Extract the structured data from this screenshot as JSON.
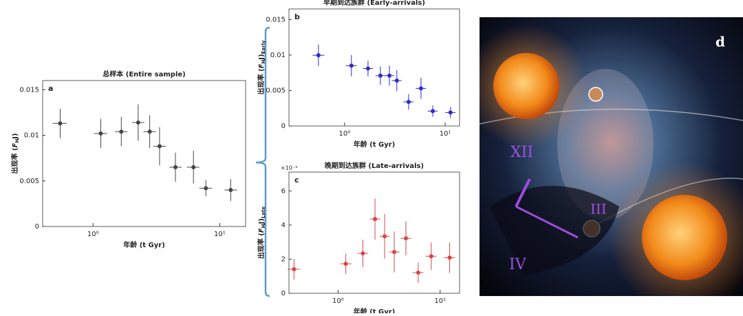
{
  "chart_data": [
    {
      "type": "scatter",
      "panel": "a",
      "title": "总样本 (Entire sample)",
      "x_label": "年龄 (t Gyr)",
      "y_label": {
        "prefix": "出现率 (",
        "var": "F",
        "sub": "H",
        "suffix": "J)"
      },
      "color": "#444444",
      "log_x": true,
      "xlim": [
        0.4,
        16
      ],
      "xticks": [
        {
          "value": 1,
          "label": "10⁰"
        },
        {
          "value": 10,
          "label": "10¹"
        }
      ],
      "ylim": [
        0,
        0.016
      ],
      "yticks": [
        0,
        0.005,
        0.01,
        0.015
      ],
      "x": [
        0.55,
        1.15,
        1.67,
        2.27,
        2.8,
        3.35,
        4.47,
        6.2,
        7.77,
        12.2
      ],
      "x_low": [
        0.48,
        1.02,
        1.49,
        2.03,
        2.5,
        3.0,
        4.0,
        5.5,
        6.9,
        10.9
      ],
      "x_high": [
        0.62,
        1.29,
        1.87,
        2.54,
        3.14,
        3.75,
        5.0,
        6.9,
        8.7,
        13.7
      ],
      "values": [
        0.0113,
        0.0102,
        0.0104,
        0.0114,
        0.0104,
        0.0088,
        0.0065,
        0.0065,
        0.0042,
        0.004
      ],
      "yerr": [
        0.0016,
        0.0016,
        0.0016,
        0.002,
        0.0018,
        0.0021,
        0.0016,
        0.0018,
        0.0009,
        0.0012
      ]
    },
    {
      "type": "scatter",
      "panel": "b",
      "title": "早期到达族群 (Early-arrivals)",
      "x_label": "年龄 (t Gyr)",
      "y_label": {
        "prefix": "出现率 (",
        "var": "F",
        "sub": "H",
        "suffix": "J)",
        "sub2": "Early"
      },
      "color": "#2b2bcc",
      "log_x": true,
      "xlim": [
        0.28,
        13.9
      ],
      "xticks": [
        {
          "value": 1,
          "label": "10⁰"
        },
        {
          "value": 10,
          "label": "10¹"
        }
      ],
      "ylim": [
        0,
        0.0165
      ],
      "yticks": [
        0,
        0.005,
        0.01,
        0.015
      ],
      "x": [
        0.55,
        1.17,
        1.71,
        2.27,
        2.79,
        3.31,
        4.33,
        5.75,
        7.53,
        11.3
      ],
      "x_low": [
        0.48,
        1.03,
        1.52,
        2.03,
        2.5,
        2.95,
        3.85,
        5.1,
        6.7,
        10.0
      ],
      "x_high": [
        0.63,
        1.32,
        1.92,
        2.54,
        3.12,
        3.7,
        4.85,
        6.45,
        8.45,
        12.7
      ],
      "values": [
        0.00997,
        0.0085,
        0.0081,
        0.0071,
        0.0071,
        0.0064,
        0.0034,
        0.0053,
        0.0021,
        0.0019
      ],
      "yerr": [
        0.0015,
        0.0015,
        0.0011,
        0.0013,
        0.0014,
        0.0015,
        0.0011,
        0.0015,
        0.0008,
        0.0008
      ]
    },
    {
      "type": "scatter",
      "panel": "c",
      "title": "晚期到达族群 (Late-arrivals)",
      "x_label": "年龄 (t Gyr)",
      "y_label": {
        "prefix": "出现率 (",
        "var": "F",
        "sub": "H",
        "suffix": "J)",
        "sub2": "Late"
      },
      "y_multiplier": "×10⁻³",
      "color": "#d94444",
      "log_x": true,
      "xlim": [
        0.33,
        15.5
      ],
      "xticks": [
        {
          "value": 1,
          "label": "10⁰"
        },
        {
          "value": 10,
          "label": "10¹"
        }
      ],
      "ylim": [
        0,
        7.1
      ],
      "yticks": [
        0,
        2,
        4,
        6
      ],
      "x": [
        0.37,
        1.19,
        1.75,
        2.3,
        2.86,
        3.55,
        4.62,
        6.1,
        8.18,
        12.4
      ],
      "x_low": [
        0.32,
        1.05,
        1.55,
        2.05,
        2.55,
        3.15,
        4.1,
        5.4,
        7.2,
        10.9
      ],
      "x_high": [
        0.42,
        1.35,
        1.97,
        2.58,
        3.2,
        4.0,
        5.2,
        6.85,
        9.2,
        14.0
      ],
      "values": [
        1.41,
        1.73,
        2.34,
        4.35,
        3.34,
        2.42,
        3.22,
        1.21,
        2.17,
        2.09
      ],
      "yerr": [
        0.6,
        0.6,
        0.8,
        1.2,
        1.3,
        1.2,
        1.0,
        0.6,
        0.8,
        0.9
      ]
    }
  ],
  "image": {
    "label": "d"
  }
}
